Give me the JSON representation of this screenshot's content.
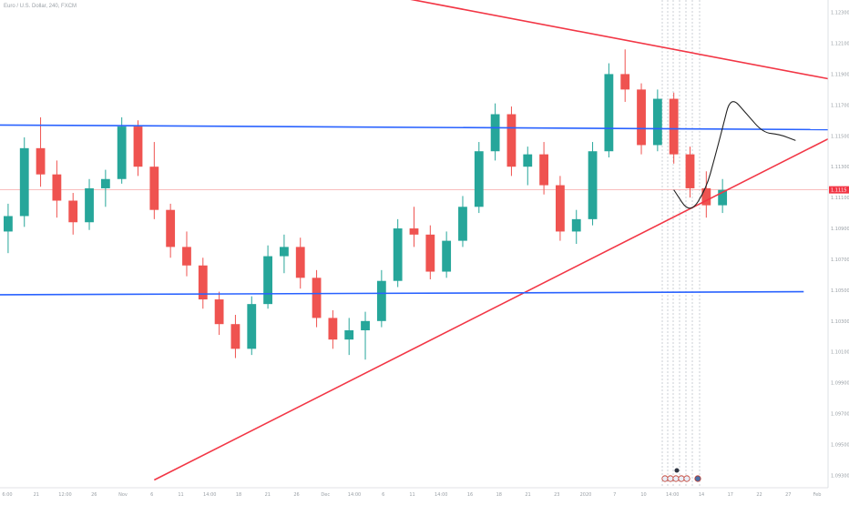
{
  "header": {
    "symbol_title": "Euro / U.S. Dollar, 240, FXCM"
  },
  "colors": {
    "up": "#26a69a",
    "down": "#ef5350",
    "trendline": "#f23645",
    "horizontal": "#2962ff",
    "price_line": "#f7a7a7",
    "axis_text": "#9aa0a6",
    "price_tag": "#f23645"
  },
  "chart_data": {
    "type": "candlestick",
    "title": "Euro / U.S. Dollar, 240, FXCM",
    "xlabel": "",
    "ylabel": "",
    "ylim": [
      1.0922,
      1.1238
    ],
    "x_ticks": [
      "6:00",
      "21",
      "12:00",
      "26",
      "Nov",
      "6",
      "11",
      "14:00",
      "18",
      "21",
      "26",
      "Dec",
      "14:00",
      "6",
      "11",
      "14:00",
      "16",
      "18",
      "21",
      "23",
      "2020",
      "7",
      "10",
      "14:00",
      "14",
      "17",
      "22",
      "27",
      "Feb"
    ],
    "y_ticks": [
      1.093,
      1.095,
      1.097,
      1.099,
      1.101,
      1.103,
      1.105,
      1.107,
      1.109,
      1.111,
      1.113,
      1.115,
      1.117,
      1.119,
      1.121,
      1.123
    ],
    "current_price": 1.1115,
    "current_price_label": "1.1115",
    "trendlines": [
      {
        "name": "upper resistance",
        "color": "red",
        "from": [
          24,
          1.1241
        ],
        "to": [
          51,
          1.1187
        ]
      },
      {
        "name": "lower support",
        "color": "red",
        "from": [
          9.5,
          1.0927
        ],
        "to": [
          51,
          1.1148
        ]
      },
      {
        "name": "upper horizontal",
        "color": "blue",
        "from": [
          0,
          1.1157
        ],
        "to": [
          51,
          1.1154
        ]
      },
      {
        "name": "lower horizontal",
        "color": "blue",
        "from": [
          0,
          1.1047
        ],
        "to": [
          49.5,
          1.1049
        ]
      }
    ],
    "projection_path": [
      [
        41.5,
        1.1115
      ],
      [
        42.5,
        1.1099
      ],
      [
        43.5,
        1.1116
      ],
      [
        44,
        1.1135
      ],
      [
        44.5,
        1.1155
      ],
      [
        45,
        1.1176
      ],
      [
        46,
        1.1164
      ],
      [
        47,
        1.1152
      ],
      [
        48,
        1.1151
      ],
      [
        49,
        1.1147
      ]
    ],
    "candles": [
      {
        "t": 0,
        "o": 1.1088,
        "h": 1.1106,
        "l": 1.1074,
        "c": 1.1098
      },
      {
        "t": 1,
        "o": 1.1098,
        "h": 1.1149,
        "l": 1.1091,
        "c": 1.1142
      },
      {
        "t": 2,
        "o": 1.1142,
        "h": 1.1162,
        "l": 1.1117,
        "c": 1.1125
      },
      {
        "t": 3,
        "o": 1.1125,
        "h": 1.1134,
        "l": 1.1097,
        "c": 1.1108
      },
      {
        "t": 4,
        "o": 1.1108,
        "h": 1.1113,
        "l": 1.1086,
        "c": 1.1094
      },
      {
        "t": 5,
        "o": 1.1094,
        "h": 1.1122,
        "l": 1.1089,
        "c": 1.1116
      },
      {
        "t": 6,
        "o": 1.1116,
        "h": 1.1128,
        "l": 1.1104,
        "c": 1.1122
      },
      {
        "t": 7,
        "o": 1.1122,
        "h": 1.1162,
        "l": 1.1119,
        "c": 1.1156
      },
      {
        "t": 8,
        "o": 1.1156,
        "h": 1.116,
        "l": 1.1124,
        "c": 1.113
      },
      {
        "t": 9,
        "o": 1.113,
        "h": 1.1146,
        "l": 1.1096,
        "c": 1.1102
      },
      {
        "t": 10,
        "o": 1.1102,
        "h": 1.1106,
        "l": 1.1071,
        "c": 1.1078
      },
      {
        "t": 11,
        "o": 1.1078,
        "h": 1.1088,
        "l": 1.1059,
        "c": 1.1066
      },
      {
        "t": 12,
        "o": 1.1066,
        "h": 1.1071,
        "l": 1.1038,
        "c": 1.1044
      },
      {
        "t": 13,
        "o": 1.1044,
        "h": 1.1049,
        "l": 1.1021,
        "c": 1.1028
      },
      {
        "t": 14,
        "o": 1.1028,
        "h": 1.1034,
        "l": 1.1006,
        "c": 1.1012
      },
      {
        "t": 15,
        "o": 1.1012,
        "h": 1.1046,
        "l": 1.1008,
        "c": 1.1041
      },
      {
        "t": 16,
        "o": 1.1041,
        "h": 1.1079,
        "l": 1.1038,
        "c": 1.1072
      },
      {
        "t": 17,
        "o": 1.1072,
        "h": 1.1086,
        "l": 1.1061,
        "c": 1.1078
      },
      {
        "t": 18,
        "o": 1.1078,
        "h": 1.1084,
        "l": 1.1051,
        "c": 1.1058
      },
      {
        "t": 19,
        "o": 1.1058,
        "h": 1.1063,
        "l": 1.1026,
        "c": 1.1032
      },
      {
        "t": 20,
        "o": 1.1032,
        "h": 1.1037,
        "l": 1.1012,
        "c": 1.1018
      },
      {
        "t": 21,
        "o": 1.1018,
        "h": 1.1032,
        "l": 1.1008,
        "c": 1.1024
      },
      {
        "t": 22,
        "o": 1.1024,
        "h": 1.1036,
        "l": 1.1005,
        "c": 1.103
      },
      {
        "t": 23,
        "o": 1.103,
        "h": 1.1063,
        "l": 1.1026,
        "c": 1.1056
      },
      {
        "t": 24,
        "o": 1.1056,
        "h": 1.1096,
        "l": 1.1052,
        "c": 1.109
      },
      {
        "t": 25,
        "o": 1.109,
        "h": 1.1104,
        "l": 1.1078,
        "c": 1.1086
      },
      {
        "t": 26,
        "o": 1.1086,
        "h": 1.1092,
        "l": 1.1057,
        "c": 1.1062
      },
      {
        "t": 27,
        "o": 1.1062,
        "h": 1.1088,
        "l": 1.1058,
        "c": 1.1082
      },
      {
        "t": 28,
        "o": 1.1082,
        "h": 1.1111,
        "l": 1.1078,
        "c": 1.1104
      },
      {
        "t": 29,
        "o": 1.1104,
        "h": 1.1146,
        "l": 1.11,
        "c": 1.114
      },
      {
        "t": 30,
        "o": 1.114,
        "h": 1.1171,
        "l": 1.1134,
        "c": 1.1164
      },
      {
        "t": 31,
        "o": 1.1164,
        "h": 1.1169,
        "l": 1.1124,
        "c": 1.113
      },
      {
        "t": 32,
        "o": 1.113,
        "h": 1.1143,
        "l": 1.1118,
        "c": 1.1138
      },
      {
        "t": 33,
        "o": 1.1138,
        "h": 1.1146,
        "l": 1.1112,
        "c": 1.1118
      },
      {
        "t": 34,
        "o": 1.1118,
        "h": 1.1124,
        "l": 1.1082,
        "c": 1.1088
      },
      {
        "t": 35,
        "o": 1.1088,
        "h": 1.1102,
        "l": 1.108,
        "c": 1.1096
      },
      {
        "t": 36,
        "o": 1.1096,
        "h": 1.1146,
        "l": 1.1092,
        "c": 1.114
      },
      {
        "t": 37,
        "o": 1.114,
        "h": 1.1197,
        "l": 1.1136,
        "c": 1.119
      },
      {
        "t": 38,
        "o": 1.119,
        "h": 1.1206,
        "l": 1.1172,
        "c": 1.118
      },
      {
        "t": 39,
        "o": 1.118,
        "h": 1.1184,
        "l": 1.1138,
        "c": 1.1144
      },
      {
        "t": 40,
        "o": 1.1144,
        "h": 1.118,
        "l": 1.114,
        "c": 1.1174
      },
      {
        "t": 41,
        "o": 1.1174,
        "h": 1.1178,
        "l": 1.1132,
        "c": 1.1138
      },
      {
        "t": 42,
        "o": 1.1138,
        "h": 1.1143,
        "l": 1.111,
        "c": 1.1116
      },
      {
        "t": 43,
        "o": 1.1116,
        "h": 1.1127,
        "l": 1.1097,
        "c": 1.1105
      },
      {
        "t": 44,
        "o": 1.1105,
        "h": 1.1122,
        "l": 1.11,
        "c": 1.1115
      }
    ]
  }
}
